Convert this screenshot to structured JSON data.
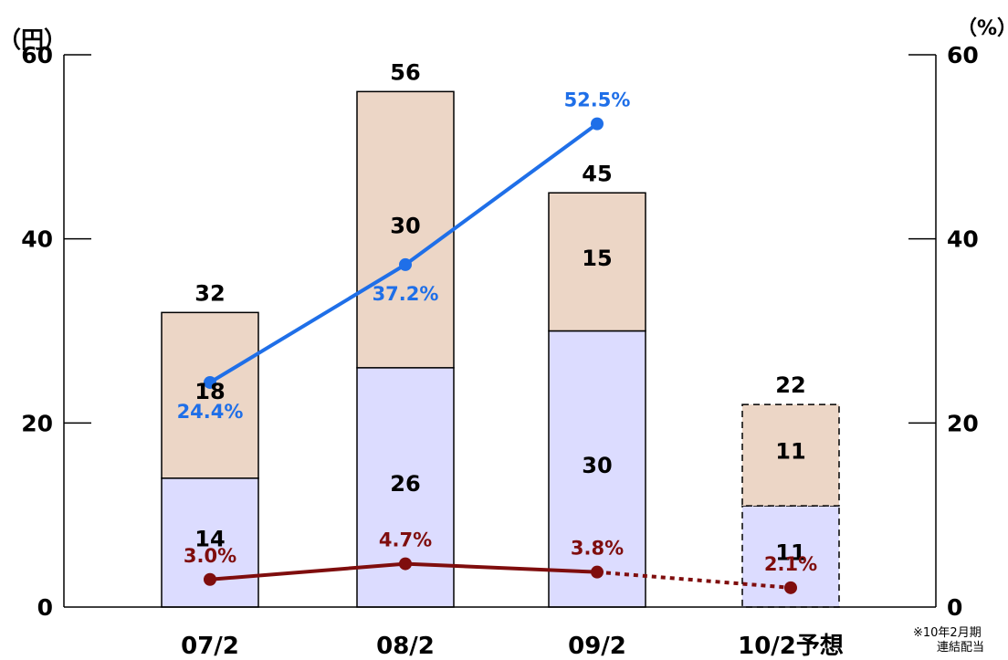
{
  "chart_data": {
    "type": "bar",
    "stacked": true,
    "categories": [
      "07/2",
      "08/2",
      "09/2",
      "10/2予想"
    ],
    "series": [
      {
        "values": [
          14,
          26,
          30,
          11
        ],
        "color": "#dcdcff"
      },
      {
        "values": [
          18,
          30,
          15,
          11
        ],
        "color": "#ecd6c6"
      }
    ],
    "totals": [
      32,
      56,
      45,
      22
    ],
    "forecast_index": 3,
    "ylabel": "（円）",
    "y2label": "（%）",
    "ylim": [
      0,
      60
    ],
    "y2lim": [
      0,
      60
    ],
    "yticks": [
      0,
      20,
      40,
      60
    ],
    "y2ticks": [
      0,
      20,
      40,
      60
    ],
    "lines": [
      {
        "axis": "right",
        "color": "#1f6fe8",
        "values": [
          24.4,
          37.2,
          52.5,
          null
        ],
        "labels": [
          "24.4%",
          "37.2%",
          "52.5%",
          ""
        ]
      },
      {
        "axis": "right",
        "color": "#7f0d0d",
        "values": [
          3.0,
          4.7,
          3.8,
          2.1
        ],
        "labels": [
          "3.0%",
          "4.7%",
          "3.8%",
          "2.1%"
        ],
        "dashed_last_segment": true
      }
    ]
  },
  "footnote": {
    "line1": "※10年2月期",
    "line2": "連結配当"
  }
}
